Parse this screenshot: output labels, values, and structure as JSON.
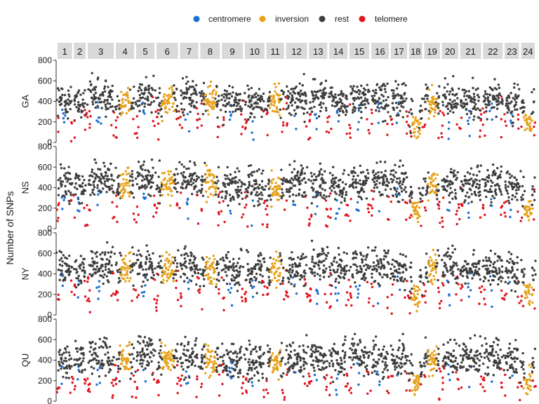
{
  "chart_data": {
    "type": "scatter",
    "ylabel": "Number of SNPs",
    "ylim": [
      0,
      800
    ],
    "yticks": [
      "0",
      "200",
      "400",
      "600",
      "800"
    ],
    "legend": {
      "placement": "top",
      "entries": [
        {
          "name": "centromere",
          "color": "#1f6fd1"
        },
        {
          "name": "inversion",
          "color": "#e6a21a"
        },
        {
          "name": "rest",
          "color": "#3d3d3d"
        },
        {
          "name": "telomere",
          "color": "#e0141e"
        }
      ]
    },
    "rows": [
      "GA",
      "NS",
      "NY",
      "QU"
    ],
    "chromosomes": [
      {
        "label": "1",
        "base": 400,
        "inversion": false
      },
      {
        "label": "2",
        "base": 380,
        "inversion": false
      },
      {
        "label": "3",
        "base": 440,
        "inversion": false
      },
      {
        "label": "4",
        "base": 410,
        "inversion": true
      },
      {
        "label": "5",
        "base": 470,
        "inversion": false
      },
      {
        "label": "6",
        "base": 420,
        "inversion": true
      },
      {
        "label": "7",
        "base": 440,
        "inversion": false
      },
      {
        "label": "8",
        "base": 420,
        "inversion": true
      },
      {
        "label": "9",
        "base": 400,
        "inversion": false
      },
      {
        "label": "10",
        "base": 400,
        "inversion": false
      },
      {
        "label": "11",
        "base": 390,
        "inversion": true
      },
      {
        "label": "12",
        "base": 420,
        "inversion": false
      },
      {
        "label": "13",
        "base": 430,
        "inversion": false
      },
      {
        "label": "14",
        "base": 420,
        "inversion": false
      },
      {
        "label": "15",
        "base": 430,
        "inversion": false
      },
      {
        "label": "16",
        "base": 430,
        "inversion": false
      },
      {
        "label": "17",
        "base": 400,
        "inversion": false
      },
      {
        "label": "18",
        "base": 320,
        "inversion": true
      },
      {
        "label": "19",
        "base": 400,
        "inversion": true
      },
      {
        "label": "20",
        "base": 420,
        "inversion": false
      },
      {
        "label": "21",
        "base": 420,
        "inversion": false
      },
      {
        "label": "22",
        "base": 430,
        "inversion": false
      },
      {
        "label": "23",
        "base": 400,
        "inversion": false
      },
      {
        "label": "24",
        "base": 360,
        "inversion": true
      }
    ]
  }
}
